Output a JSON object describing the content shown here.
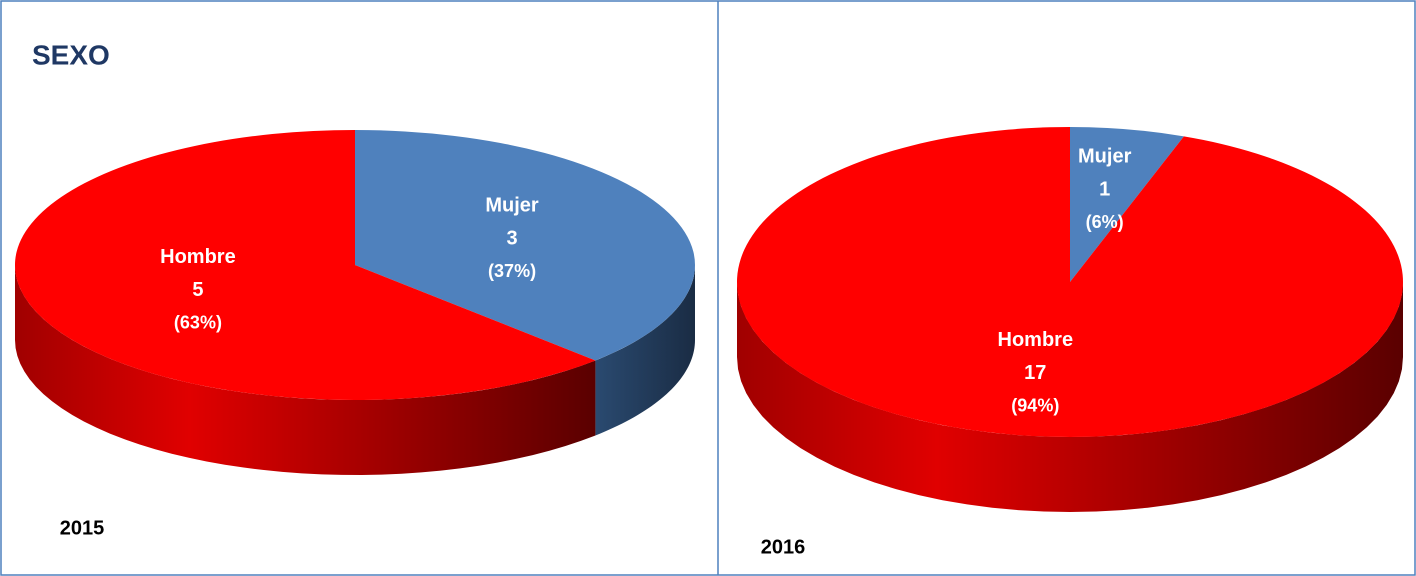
{
  "chart_data": [
    {
      "type": "pie3d",
      "title": "SEXO",
      "label": "2015",
      "categories": [
        "Mujer",
        "Hombre"
      ],
      "values": [
        3,
        5
      ],
      "percent_labels": [
        "(37%)",
        "(63%)"
      ],
      "colors": [
        "#4f81bd",
        "#ff0000"
      ]
    },
    {
      "type": "pie3d",
      "label": "2016",
      "categories": [
        "Mujer",
        "Hombre"
      ],
      "values": [
        1,
        17
      ],
      "percent_labels": [
        "(6%)",
        "(94%)"
      ],
      "colors": [
        "#4f81bd",
        "#ff0000"
      ]
    }
  ]
}
